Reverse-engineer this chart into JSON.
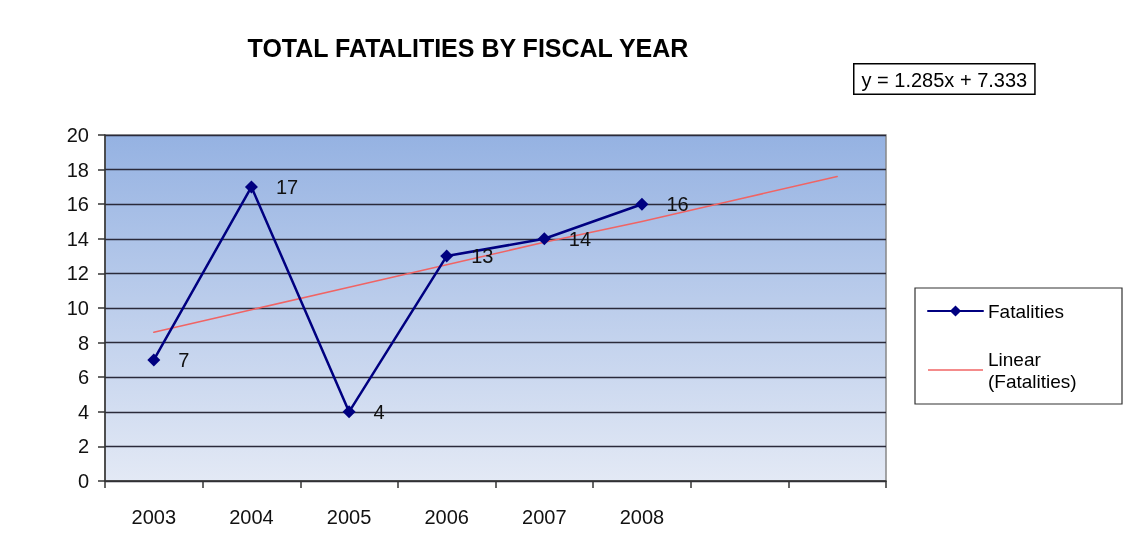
{
  "chart_data": {
    "type": "line",
    "title": "TOTAL FATALITIES BY FISCAL YEAR",
    "annotations": [
      "y = 1.285x + 7.333"
    ],
    "categories": [
      "2003",
      "2004",
      "2005",
      "2006",
      "2007",
      "2008",
      null,
      null
    ],
    "series": [
      {
        "name": "Fatalities",
        "color": "#000080",
        "values": [
          7,
          17,
          4,
          13,
          14,
          16,
          null,
          null
        ],
        "marker": "diamond",
        "data_labels": true
      },
      {
        "name": "Linear (Fatalities)",
        "color": "#f06464",
        "values": [
          8.6,
          9.9,
          11.2,
          12.5,
          13.8,
          15.0,
          16.3,
          17.6
        ],
        "marker": "none",
        "data_labels": false
      }
    ],
    "ylim": [
      0,
      20
    ],
    "yticks": [
      0,
      2,
      4,
      6,
      8,
      10,
      12,
      14,
      16,
      18,
      20
    ],
    "grid": "y",
    "legend": "right"
  }
}
